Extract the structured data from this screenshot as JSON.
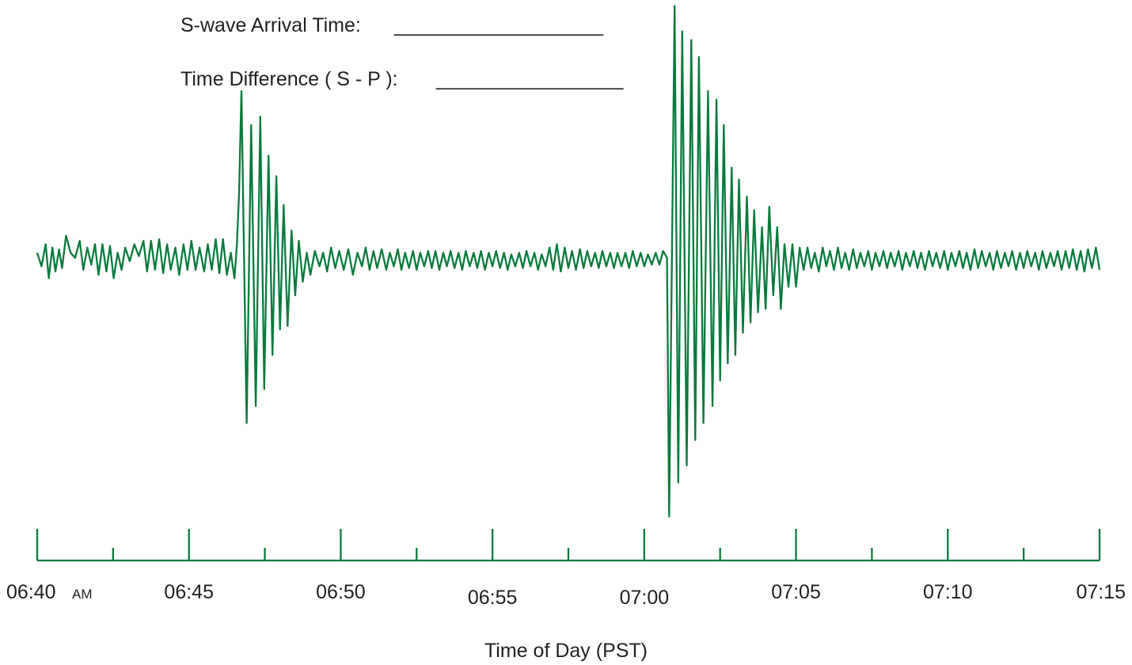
{
  "worksheet": {
    "s_wave_label": "S-wave Arrival Time:",
    "s_wave_blank": "___________________",
    "diff_label": "Time Difference ( S - P ):",
    "diff_blank": "_________________"
  },
  "chart_data": {
    "type": "line",
    "title": "",
    "xlabel": "Time of Day (PST)",
    "ylabel": "",
    "x_range_minutes": [
      0,
      35
    ],
    "x_start_clock": "06:40",
    "major_ticks": [
      {
        "minute": 0,
        "label": "06:40",
        "suffix": "AM"
      },
      {
        "minute": 5,
        "label": "06:45"
      },
      {
        "minute": 10,
        "label": "06:50"
      },
      {
        "minute": 15,
        "label": "06:55"
      },
      {
        "minute": 20,
        "label": "07:00"
      },
      {
        "minute": 25,
        "label": "07:05"
      },
      {
        "minute": 30,
        "label": "07:10"
      },
      {
        "minute": 35,
        "label": "07:15"
      }
    ],
    "minor_ticks_minutes": [
      2.5,
      7.5,
      12.5,
      17.5,
      22.5,
      27.5,
      32.5
    ],
    "grid": false,
    "legend": "none",
    "line_color": "#0a7a3c",
    "events": [
      {
        "name": "first wave burst",
        "onset_minute": 6.6,
        "peak_minute": 6.85,
        "end_minute": 9.2
      },
      {
        "name": "second wave burst",
        "onset_minute": 20.8,
        "peak_minute": 21.0,
        "end_minute": 25.3
      }
    ],
    "series": [
      {
        "values": [
          [
            0.0,
            0.05
          ],
          [
            0.14,
            -0.03
          ],
          [
            0.28,
            0.1
          ],
          [
            0.38,
            -0.1
          ],
          [
            0.5,
            0.08
          ],
          [
            0.6,
            -0.06
          ],
          [
            0.72,
            0.07
          ],
          [
            0.82,
            -0.04
          ],
          [
            0.95,
            0.15
          ],
          [
            1.1,
            0.05
          ],
          [
            1.25,
            0.02
          ],
          [
            1.4,
            0.12
          ],
          [
            1.52,
            -0.05
          ],
          [
            1.65,
            0.08
          ],
          [
            1.78,
            -0.02
          ],
          [
            1.9,
            0.1
          ],
          [
            2.02,
            -0.08
          ],
          [
            2.15,
            0.1
          ],
          [
            2.28,
            -0.06
          ],
          [
            2.4,
            0.09
          ],
          [
            2.52,
            -0.1
          ],
          [
            2.65,
            0.05
          ],
          [
            2.78,
            -0.05
          ],
          [
            2.9,
            0.08
          ],
          [
            3.05,
            0.0
          ],
          [
            3.2,
            0.1
          ],
          [
            3.35,
            0.03
          ],
          [
            3.5,
            0.12
          ],
          [
            3.62,
            -0.06
          ],
          [
            3.75,
            0.12
          ],
          [
            3.88,
            -0.05
          ],
          [
            4.02,
            0.13
          ],
          [
            4.15,
            -0.07
          ],
          [
            4.28,
            0.1
          ],
          [
            4.4,
            -0.05
          ],
          [
            4.55,
            0.08
          ],
          [
            4.68,
            -0.08
          ],
          [
            4.82,
            0.1
          ],
          [
            4.95,
            -0.05
          ],
          [
            5.08,
            0.12
          ],
          [
            5.22,
            -0.05
          ],
          [
            5.35,
            0.08
          ],
          [
            5.5,
            -0.06
          ],
          [
            5.62,
            0.1
          ],
          [
            5.75,
            -0.05
          ],
          [
            5.88,
            0.13
          ],
          [
            6.0,
            -0.07
          ],
          [
            6.12,
            0.13
          ],
          [
            6.25,
            -0.08
          ],
          [
            6.38,
            0.05
          ],
          [
            6.5,
            -0.1
          ],
          [
            6.58,
            0.1
          ],
          [
            6.65,
            0.4
          ],
          [
            6.73,
            1.0
          ],
          [
            6.9,
            -0.95
          ],
          [
            7.05,
            0.8
          ],
          [
            7.2,
            -0.85
          ],
          [
            7.35,
            0.85
          ],
          [
            7.48,
            -0.75
          ],
          [
            7.62,
            0.62
          ],
          [
            7.75,
            -0.55
          ],
          [
            7.88,
            0.5
          ],
          [
            8.0,
            -0.4
          ],
          [
            8.12,
            0.33
          ],
          [
            8.25,
            -0.38
          ],
          [
            8.38,
            0.18
          ],
          [
            8.5,
            -0.2
          ],
          [
            8.62,
            0.12
          ],
          [
            8.75,
            -0.12
          ],
          [
            8.88,
            0.05
          ],
          [
            9.0,
            -0.08
          ],
          [
            9.15,
            0.06
          ],
          [
            9.3,
            -0.03
          ],
          [
            9.42,
            0.05
          ],
          [
            9.55,
            -0.06
          ],
          [
            9.68,
            0.08
          ],
          [
            9.82,
            -0.04
          ],
          [
            9.95,
            0.06
          ],
          [
            10.1,
            -0.05
          ],
          [
            10.25,
            0.07
          ],
          [
            10.4,
            -0.08
          ],
          [
            10.55,
            0.05
          ],
          [
            10.7,
            -0.03
          ],
          [
            10.82,
            0.08
          ],
          [
            10.95,
            -0.05
          ],
          [
            11.08,
            0.06
          ],
          [
            11.2,
            -0.04
          ],
          [
            11.35,
            0.07
          ],
          [
            11.5,
            -0.05
          ],
          [
            11.62,
            0.05
          ],
          [
            11.75,
            -0.03
          ],
          [
            11.88,
            0.07
          ],
          [
            12.0,
            -0.05
          ],
          [
            12.12,
            0.05
          ],
          [
            12.25,
            -0.04
          ],
          [
            12.38,
            0.06
          ],
          [
            12.5,
            -0.05
          ],
          [
            12.62,
            0.05
          ],
          [
            12.75,
            -0.03
          ],
          [
            12.88,
            0.06
          ],
          [
            13.0,
            -0.04
          ],
          [
            13.12,
            0.06
          ],
          [
            13.25,
            -0.05
          ],
          [
            13.38,
            0.05
          ],
          [
            13.5,
            -0.03
          ],
          [
            13.62,
            0.06
          ],
          [
            13.75,
            -0.04
          ],
          [
            13.88,
            0.05
          ],
          [
            14.0,
            -0.05
          ],
          [
            14.12,
            0.06
          ],
          [
            14.25,
            -0.03
          ],
          [
            14.38,
            0.05
          ],
          [
            14.5,
            -0.04
          ],
          [
            14.62,
            0.06
          ],
          [
            14.75,
            -0.05
          ],
          [
            14.88,
            0.05
          ],
          [
            15.0,
            -0.03
          ],
          [
            15.12,
            0.06
          ],
          [
            15.25,
            -0.04
          ],
          [
            15.38,
            0.05
          ],
          [
            15.5,
            -0.05
          ],
          [
            15.62,
            0.04
          ],
          [
            15.75,
            -0.03
          ],
          [
            15.88,
            0.05
          ],
          [
            16.0,
            -0.04
          ],
          [
            16.12,
            0.06
          ],
          [
            16.25,
            -0.03
          ],
          [
            16.38,
            0.05
          ],
          [
            16.5,
            -0.05
          ],
          [
            16.62,
            0.04
          ],
          [
            16.75,
            -0.03
          ],
          [
            16.88,
            0.08
          ],
          [
            17.0,
            -0.05
          ],
          [
            17.12,
            0.1
          ],
          [
            17.25,
            -0.06
          ],
          [
            17.38,
            0.08
          ],
          [
            17.5,
            -0.04
          ],
          [
            17.62,
            0.06
          ],
          [
            17.75,
            -0.05
          ],
          [
            17.88,
            0.07
          ],
          [
            18.0,
            -0.04
          ],
          [
            18.12,
            0.06
          ],
          [
            18.25,
            -0.03
          ],
          [
            18.38,
            0.05
          ],
          [
            18.5,
            -0.04
          ],
          [
            18.62,
            0.06
          ],
          [
            18.75,
            -0.03
          ],
          [
            18.88,
            0.05
          ],
          [
            19.0,
            -0.04
          ],
          [
            19.12,
            0.05
          ],
          [
            19.25,
            -0.03
          ],
          [
            19.38,
            0.05
          ],
          [
            19.5,
            -0.04
          ],
          [
            19.62,
            0.06
          ],
          [
            19.75,
            -0.03
          ],
          [
            19.88,
            0.05
          ],
          [
            20.0,
            -0.03
          ],
          [
            20.12,
            0.04
          ],
          [
            20.25,
            -0.02
          ],
          [
            20.38,
            0.05
          ],
          [
            20.5,
            -0.02
          ],
          [
            20.62,
            0.06
          ],
          [
            20.75,
            0.02
          ],
          [
            20.82,
            -1.5
          ],
          [
            21.0,
            1.5
          ],
          [
            21.12,
            -1.3
          ],
          [
            21.25,
            1.35
          ],
          [
            21.4,
            -1.2
          ],
          [
            21.55,
            1.3
          ],
          [
            21.68,
            -1.05
          ],
          [
            21.8,
            1.2
          ],
          [
            21.95,
            -0.95
          ],
          [
            22.1,
            1.0
          ],
          [
            22.25,
            -0.85
          ],
          [
            22.38,
            0.95
          ],
          [
            22.5,
            -0.7
          ],
          [
            22.62,
            0.8
          ],
          [
            22.75,
            -0.6
          ],
          [
            22.88,
            0.55
          ],
          [
            23.0,
            -0.55
          ],
          [
            23.12,
            0.48
          ],
          [
            23.25,
            -0.42
          ],
          [
            23.38,
            0.38
          ],
          [
            23.5,
            -0.36
          ],
          [
            23.62,
            0.3
          ],
          [
            23.75,
            -0.3
          ],
          [
            23.88,
            0.2
          ],
          [
            24.0,
            -0.28
          ],
          [
            24.12,
            0.32
          ],
          [
            24.25,
            -0.2
          ],
          [
            24.38,
            0.2
          ],
          [
            24.5,
            -0.28
          ],
          [
            24.62,
            0.1
          ],
          [
            24.75,
            -0.15
          ],
          [
            24.88,
            0.1
          ],
          [
            25.0,
            -0.15
          ],
          [
            25.12,
            0.08
          ],
          [
            25.25,
            -0.05
          ],
          [
            25.38,
            0.08
          ],
          [
            25.5,
            -0.04
          ],
          [
            25.62,
            0.05
          ],
          [
            25.75,
            -0.06
          ],
          [
            25.88,
            0.08
          ],
          [
            26.0,
            -0.03
          ],
          [
            26.12,
            0.06
          ],
          [
            26.25,
            -0.05
          ],
          [
            26.38,
            0.08
          ],
          [
            26.5,
            -0.04
          ],
          [
            26.62,
            0.05
          ],
          [
            26.75,
            -0.05
          ],
          [
            26.88,
            0.07
          ],
          [
            27.0,
            -0.04
          ],
          [
            27.12,
            0.05
          ],
          [
            27.25,
            -0.03
          ],
          [
            27.38,
            0.06
          ],
          [
            27.5,
            -0.05
          ],
          [
            27.62,
            0.05
          ],
          [
            27.75,
            -0.03
          ],
          [
            27.88,
            0.06
          ],
          [
            28.0,
            -0.04
          ],
          [
            28.12,
            0.05
          ],
          [
            28.25,
            -0.03
          ],
          [
            28.38,
            0.06
          ],
          [
            28.5,
            -0.05
          ],
          [
            28.62,
            0.05
          ],
          [
            28.75,
            -0.03
          ],
          [
            28.88,
            0.06
          ],
          [
            29.0,
            -0.04
          ],
          [
            29.12,
            0.05
          ],
          [
            29.25,
            -0.05
          ],
          [
            29.38,
            0.06
          ],
          [
            29.5,
            -0.03
          ],
          [
            29.62,
            0.05
          ],
          [
            29.75,
            -0.04
          ],
          [
            29.88,
            0.06
          ],
          [
            30.0,
            -0.05
          ],
          [
            30.12,
            0.05
          ],
          [
            30.25,
            -0.03
          ],
          [
            30.38,
            0.06
          ],
          [
            30.5,
            -0.04
          ],
          [
            30.62,
            0.05
          ],
          [
            30.75,
            -0.05
          ],
          [
            30.88,
            0.07
          ],
          [
            31.0,
            -0.04
          ],
          [
            31.12,
            0.06
          ],
          [
            31.25,
            -0.03
          ],
          [
            31.38,
            0.05
          ],
          [
            31.5,
            -0.05
          ],
          [
            31.62,
            0.06
          ],
          [
            31.75,
            -0.04
          ],
          [
            31.88,
            0.05
          ],
          [
            32.0,
            -0.03
          ],
          [
            32.12,
            0.06
          ],
          [
            32.25,
            -0.05
          ],
          [
            32.38,
            0.05
          ],
          [
            32.5,
            -0.04
          ],
          [
            32.62,
            0.06
          ],
          [
            32.75,
            -0.03
          ],
          [
            32.88,
            0.05
          ],
          [
            33.0,
            -0.05
          ],
          [
            33.12,
            0.06
          ],
          [
            33.25,
            -0.04
          ],
          [
            33.38,
            0.05
          ],
          [
            33.5,
            -0.03
          ],
          [
            33.62,
            0.06
          ],
          [
            33.75,
            -0.05
          ],
          [
            33.88,
            0.06
          ],
          [
            34.0,
            -0.04
          ],
          [
            34.12,
            0.07
          ],
          [
            34.25,
            -0.05
          ],
          [
            34.38,
            0.06
          ],
          [
            34.5,
            -0.06
          ],
          [
            34.62,
            0.07
          ],
          [
            34.75,
            -0.04
          ],
          [
            34.88,
            0.08
          ],
          [
            35.0,
            -0.05
          ]
        ]
      }
    ]
  }
}
